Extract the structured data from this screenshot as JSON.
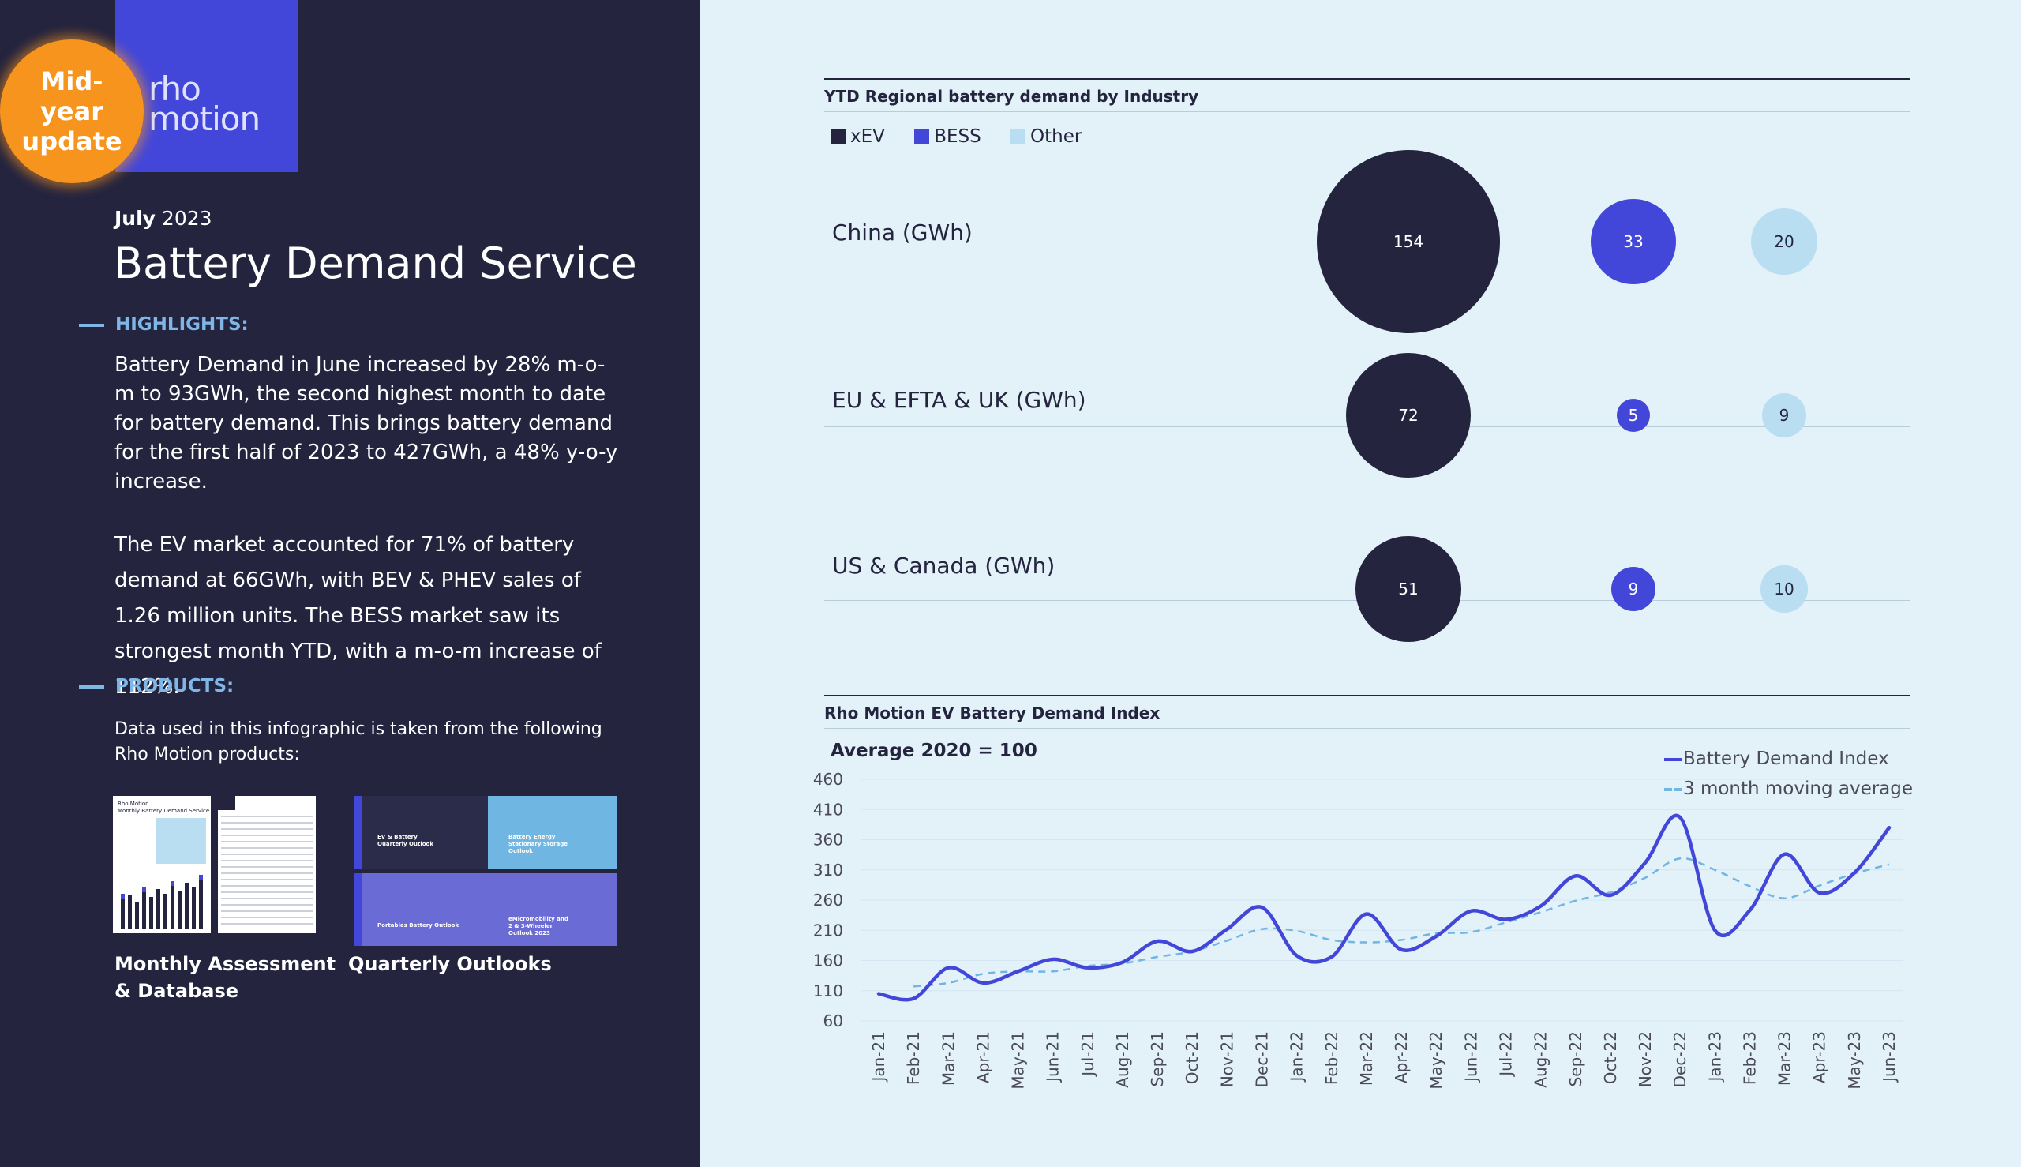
{
  "brand": {
    "logo": "rho\nmotion",
    "badge": "Mid-\nyear\nupdate"
  },
  "header": {
    "month": "July",
    "year": "2023",
    "title": "Battery Demand Service"
  },
  "highlights": {
    "heading": "HIGHLIGHTS:",
    "paragraph1": "Battery Demand in June increased by 28% m-o-m to 93GWh, the second highest month to date for battery demand. This brings battery demand for the first half of 2023 to 427GWh, a 48% y-o-y increase.",
    "paragraph2": "The EV market accounted for 71% of battery demand at 66GWh, with BEV & PHEV sales of 1.26 million units. The BESS market saw its strongest month YTD, with a  m-o-m increase of 112%."
  },
  "products": {
    "heading": "PRODUCTS:",
    "intro": "Data used in this infographic is taken from the following Rho Motion products:",
    "items": [
      {
        "label": "Monthly Assessment\n& Database"
      },
      {
        "label": "Quarterly Outlooks"
      }
    ],
    "thumb_texts": {
      "monthly_cover": "Rho Motion\nMonthly Battery Demand Service",
      "ev_outlook": "EV & Battery\nQuarterly Outlook",
      "bess_outlook": "Battery Energy\nStationary Storage\nOutlook",
      "portables_outlook": "Portables Battery Outlook",
      "micromobility_outlook": "eMicromobility and\n2 & 3-Wheeler\nOutlook 2023"
    }
  },
  "colors": {
    "xev": "#24243f",
    "bess": "#4347d9",
    "other": "#b9def2",
    "panel_bg": "#e3f1f9",
    "left_bg": "#24243f",
    "badge": "#f7941d",
    "ma": "#6fb6e2"
  },
  "chart_data": [
    {
      "type": "scatter",
      "title": "YTD Regional battery demand by Industry",
      "legend": [
        "xEV",
        "BESS",
        "Other"
      ],
      "legend_placement": "top-left",
      "categories": [
        "China (GWh)",
        "EU & EFTA & UK (GWh)",
        "US & Canada (GWh)"
      ],
      "series": [
        {
          "name": "xEV",
          "values": [
            154,
            72,
            51
          ]
        },
        {
          "name": "BESS",
          "values": [
            33,
            5,
            9
          ]
        },
        {
          "name": "Other",
          "values": [
            20,
            9,
            10
          ]
        }
      ]
    },
    {
      "type": "line",
      "title": "Rho Motion EV Battery Demand Index",
      "subtitle": "Average 2020 = 100",
      "legend_placement": "top-right",
      "yticks": [
        60,
        110,
        160,
        210,
        260,
        310,
        360,
        410,
        460
      ],
      "ylim": [
        60,
        460
      ],
      "x": [
        "Jan-21",
        "Feb-21",
        "Mar-21",
        "Apr-21",
        "May-21",
        "Jun-21",
        "Jul-21",
        "Aug-21",
        "Sep-21",
        "Oct-21",
        "Nov-21",
        "Dec-21",
        "Jan-22",
        "Feb-22",
        "Mar-22",
        "Apr-22",
        "May-22",
        "Jun-22",
        "Jul-22",
        "Aug-22",
        "Sep-22",
        "Oct-22",
        "Nov-22",
        "Dec-22",
        "Jan-23",
        "Feb-23",
        "Mar-23",
        "Apr-23",
        "May-23",
        "Jun-23"
      ],
      "series": [
        {
          "name": "Battery Demand Index",
          "values": [
            105,
            97,
            148,
            123,
            142,
            162,
            148,
            157,
            192,
            175,
            212,
            248,
            168,
            166,
            237,
            178,
            200,
            242,
            228,
            250,
            300,
            268,
            322,
            397,
            210,
            243,
            336,
            272,
            305,
            380
          ]
        },
        {
          "name": "3 month moving average",
          "values": [
            null,
            117,
            123,
            138,
            142,
            142,
            151,
            155,
            166,
            175,
            193,
            212,
            209,
            194,
            190,
            194,
            205,
            207,
            223,
            240,
            259,
            273,
            297,
            329,
            310,
            283,
            263,
            284,
            304,
            319
          ]
        }
      ]
    }
  ]
}
